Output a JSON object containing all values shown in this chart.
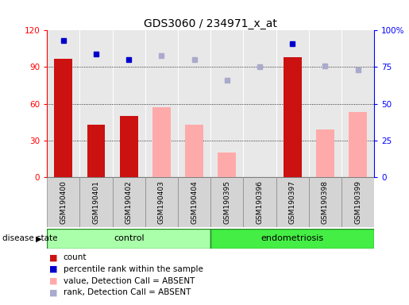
{
  "title": "GDS3060 / 234971_x_at",
  "samples": [
    "GSM190400",
    "GSM190401",
    "GSM190402",
    "GSM190403",
    "GSM190404",
    "GSM190395",
    "GSM190396",
    "GSM190397",
    "GSM190398",
    "GSM190399"
  ],
  "count_values": [
    97,
    43,
    50,
    null,
    null,
    null,
    null,
    98,
    null,
    null
  ],
  "value_absent": [
    null,
    null,
    null,
    57,
    43,
    20,
    null,
    null,
    39,
    53
  ],
  "percentile_rank": [
    93,
    84,
    80,
    83,
    80,
    66,
    75,
    91,
    76,
    73
  ],
  "rank_absent": [
    null,
    null,
    null,
    83,
    80,
    66,
    75,
    null,
    76,
    73
  ],
  "ylim_left": [
    0,
    120
  ],
  "ylim_right": [
    0,
    100
  ],
  "yticks_left": [
    0,
    30,
    60,
    90,
    120
  ],
  "ytick_labels_left": [
    "0",
    "30",
    "60",
    "90",
    "120"
  ],
  "yticks_right": [
    0,
    25,
    50,
    75,
    100
  ],
  "ytick_labels_right": [
    "0",
    "25",
    "50",
    "75",
    "100%"
  ],
  "bar_width": 0.55,
  "color_count": "#cc1111",
  "color_absent_value": "#ffaaaa",
  "color_percentile": "#0000cc",
  "color_rank_absent": "#aaaacc",
  "group_labels": [
    "control",
    "endometriosis"
  ],
  "group_color_ctrl": "#aaffaa",
  "group_color_endo": "#44ee44",
  "group_edge_color": "#228822",
  "legend_items": [
    {
      "label": "count",
      "color": "#cc1111"
    },
    {
      "label": "percentile rank within the sample",
      "color": "#0000cc"
    },
    {
      "label": "value, Detection Call = ABSENT",
      "color": "#ffaaaa"
    },
    {
      "label": "rank, Detection Call = ABSENT",
      "color": "#aaaacc"
    }
  ],
  "disease_state_label": "disease state",
  "plot_bg": "#e8e8e8",
  "cell_bg": "#d4d4d4",
  "cell_edge": "#888888"
}
